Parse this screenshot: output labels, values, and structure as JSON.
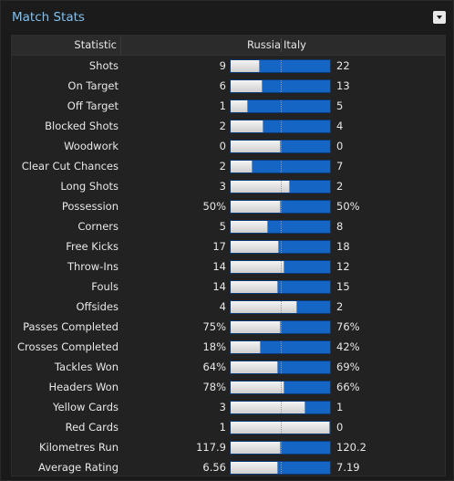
{
  "panel": {
    "title": "Match Stats"
  },
  "header": {
    "statistic": "Statistic",
    "home_team": "Russia",
    "away_team": "Italy"
  },
  "colors": {
    "title": "#7ec0f0",
    "home_bar": "#e0e0e0",
    "away_bar": "#1565c5"
  },
  "stats": [
    {
      "label": "Shots",
      "home": "9",
      "away": "22",
      "home_share": 0.29
    },
    {
      "label": "On Target",
      "home": "6",
      "away": "13",
      "home_share": 0.32
    },
    {
      "label": "Off Target",
      "home": "1",
      "away": "5",
      "home_share": 0.17
    },
    {
      "label": "Blocked Shots",
      "home": "2",
      "away": "4",
      "home_share": 0.33
    },
    {
      "label": "Woodwork",
      "home": "0",
      "away": "0",
      "home_share": 0.5
    },
    {
      "label": "Clear Cut Chances",
      "home": "2",
      "away": "7",
      "home_share": 0.22
    },
    {
      "label": "Long Shots",
      "home": "3",
      "away": "2",
      "home_share": 0.6
    },
    {
      "label": "Possession",
      "home": "50%",
      "away": "50%",
      "home_share": 0.5
    },
    {
      "label": "Corners",
      "home": "5",
      "away": "8",
      "home_share": 0.38
    },
    {
      "label": "Free Kicks",
      "home": "17",
      "away": "18",
      "home_share": 0.49
    },
    {
      "label": "Throw-Ins",
      "home": "14",
      "away": "12",
      "home_share": 0.54
    },
    {
      "label": "Fouls",
      "home": "14",
      "away": "15",
      "home_share": 0.48
    },
    {
      "label": "Offsides",
      "home": "4",
      "away": "2",
      "home_share": 0.67
    },
    {
      "label": "Passes Completed",
      "home": "75%",
      "away": "76%",
      "home_share": 0.5
    },
    {
      "label": "Crosses Completed",
      "home": "18%",
      "away": "42%",
      "home_share": 0.3
    },
    {
      "label": "Tackles Won",
      "home": "64%",
      "away": "69%",
      "home_share": 0.48
    },
    {
      "label": "Headers Won",
      "home": "78%",
      "away": "66%",
      "home_share": 0.54
    },
    {
      "label": "Yellow Cards",
      "home": "3",
      "away": "1",
      "home_share": 0.75
    },
    {
      "label": "Red Cards",
      "home": "1",
      "away": "0",
      "home_share": 1.0
    },
    {
      "label": "Kilometres Run",
      "home": "117.9",
      "away": "120.2",
      "home_share": 0.5
    },
    {
      "label": "Average Rating",
      "home": "6.56",
      "away": "7.19",
      "home_share": 0.48
    }
  ]
}
